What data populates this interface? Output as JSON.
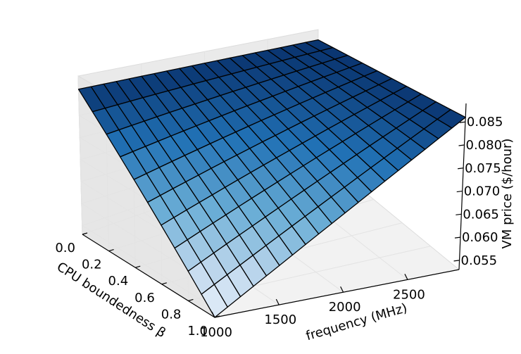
{
  "chart_data": {
    "type": "surface3d",
    "title": "",
    "xlabel": "frequency (MHz)",
    "ylabel": "CPU boundedness β",
    "zlabel": "VM price ($/hour)",
    "xlim": [
      1000,
      2900
    ],
    "ylim": [
      0.0,
      1.0
    ],
    "zlim": [
      0.053,
      0.089
    ],
    "x_ticks": [
      1000,
      1500,
      2000,
      2500
    ],
    "x_tick_labels": [
      "1000",
      "1500",
      "2000",
      "2500"
    ],
    "y_ticks": [
      0.0,
      0.2,
      0.4,
      0.6,
      0.8,
      1.0
    ],
    "y_tick_labels": [
      "0.0",
      "0.2",
      "0.4",
      "0.6",
      "0.8",
      "1.0"
    ],
    "z_ticks": [
      0.055,
      0.06,
      0.065,
      0.07,
      0.075,
      0.08,
      0.085
    ],
    "z_tick_labels": [
      "0.055",
      "0.060",
      "0.065",
      "0.070",
      "0.075",
      "0.080",
      "0.085"
    ],
    "surface": {
      "x_range": [
        1000,
        2900
      ],
      "y_range": [
        0.0,
        1.0
      ],
      "x_cells": 19,
      "y_cells": 10,
      "corner_values": {
        "x_min_y_min": 0.086,
        "x_max_y_min": 0.086,
        "x_min_y_max": 0.053,
        "x_max_y_max": 0.086
      },
      "colormap": "Blues"
    },
    "grid": true
  }
}
